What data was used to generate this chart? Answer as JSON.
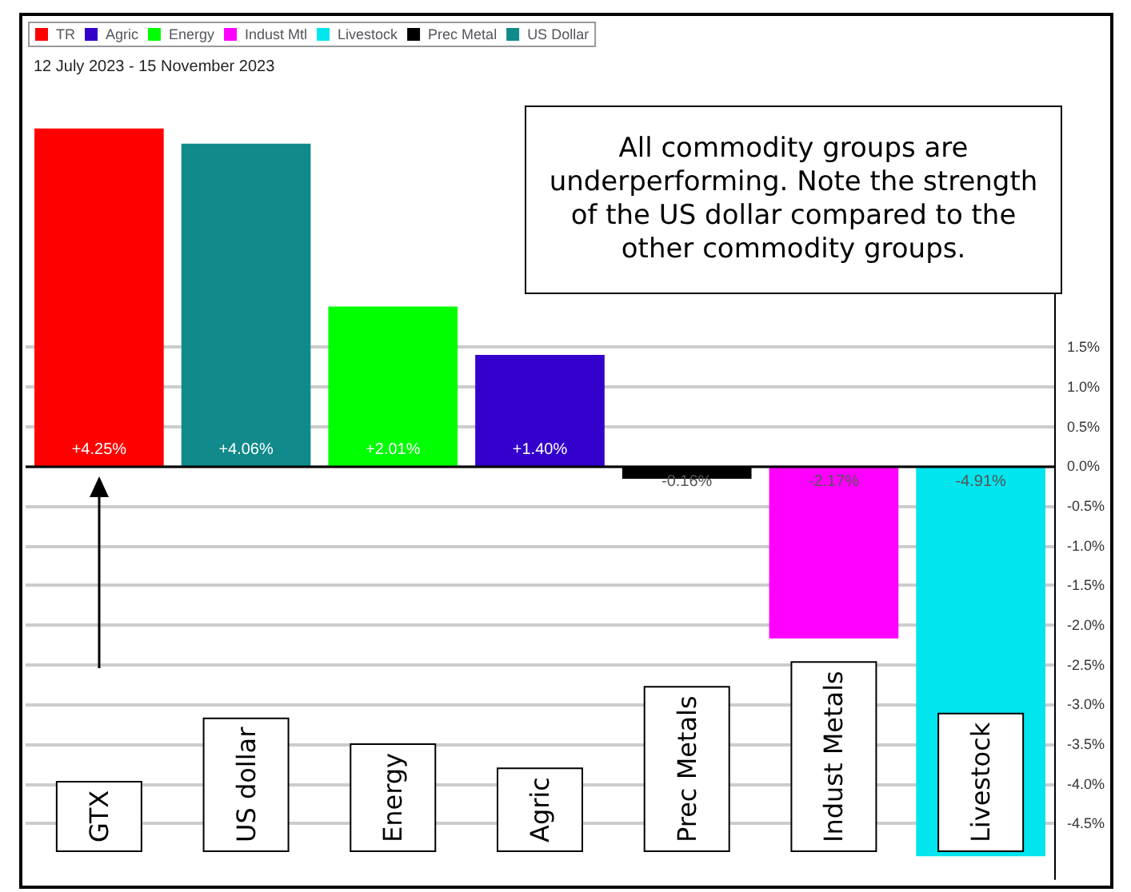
{
  "chart_data": {
    "type": "bar",
    "subtitle": "12 July 2023 - 15 November 2023",
    "categories": [
      "GTX",
      "US dollar",
      "Energy",
      "Agric",
      "Prec Metals",
      "Indust Metals",
      "Livestock"
    ],
    "series": [
      {
        "name": "TR",
        "color": "#ff0000",
        "values": [
          4.25,
          null,
          null,
          null,
          null,
          null,
          null
        ],
        "value_labels": [
          "+4.25%",
          null,
          null,
          null,
          null,
          null,
          null
        ]
      },
      {
        "name": "Agric",
        "color": "#3300cc",
        "values": [
          null,
          null,
          null,
          1.4,
          null,
          null,
          null
        ],
        "value_labels": [
          null,
          null,
          null,
          "+1.40%",
          null,
          null,
          null
        ]
      },
      {
        "name": "Energy",
        "color": "#00ff00",
        "values": [
          null,
          null,
          2.01,
          null,
          null,
          null,
          null
        ],
        "value_labels": [
          null,
          null,
          "+2.01%",
          null,
          null,
          null,
          null
        ]
      },
      {
        "name": "Indust Mtl",
        "color": "#ff00ff",
        "values": [
          null,
          null,
          null,
          null,
          null,
          -2.17,
          null
        ],
        "value_labels": [
          null,
          null,
          null,
          null,
          null,
          "-2.17%",
          null
        ]
      },
      {
        "name": "Livestock",
        "color": "#00e5ee",
        "values": [
          null,
          null,
          null,
          null,
          null,
          null,
          -4.91
        ],
        "value_labels": [
          null,
          null,
          null,
          null,
          null,
          null,
          "-4.91%"
        ]
      },
      {
        "name": "Prec Metal",
        "color": "#000000",
        "values": [
          null,
          null,
          null,
          null,
          -0.16,
          null,
          null
        ],
        "value_labels": [
          null,
          null,
          null,
          null,
          "-0.16%",
          null,
          null
        ]
      },
      {
        "name": "US Dollar",
        "color": "#108a8a",
        "values": [
          null,
          4.06,
          null,
          null,
          null,
          null,
          null
        ],
        "value_labels": [
          null,
          "+4.06%",
          null,
          null,
          null,
          null,
          null
        ]
      }
    ],
    "ylim": [
      -5.2,
      4.5
    ],
    "yticks": [
      {
        "value": -4.5,
        "label": "-4.5%"
      },
      {
        "value": -4,
        "label": "-4.0%"
      },
      {
        "value": -3.5,
        "label": "-3.5%"
      },
      {
        "value": -3,
        "label": "-3.0%"
      },
      {
        "value": -2.5,
        "label": "-2.5%"
      },
      {
        "value": -2,
        "label": "-2.0%"
      },
      {
        "value": -1.5,
        "label": "-1.5%"
      },
      {
        "value": -1,
        "label": "-1.0%"
      },
      {
        "value": -0.5,
        "label": "-0.5%"
      },
      {
        "value": 0,
        "label": "0.0%"
      },
      {
        "value": 0.5,
        "label": "0.5%"
      },
      {
        "value": 1,
        "label": "1.0%"
      },
      {
        "value": 1.5,
        "label": "1.5%"
      }
    ],
    "annotations": [
      "All commodity groups are underperforming.  Note the strength of the US dollar compared to the other commodity groups."
    ],
    "grid": "y",
    "legend": "top left"
  }
}
